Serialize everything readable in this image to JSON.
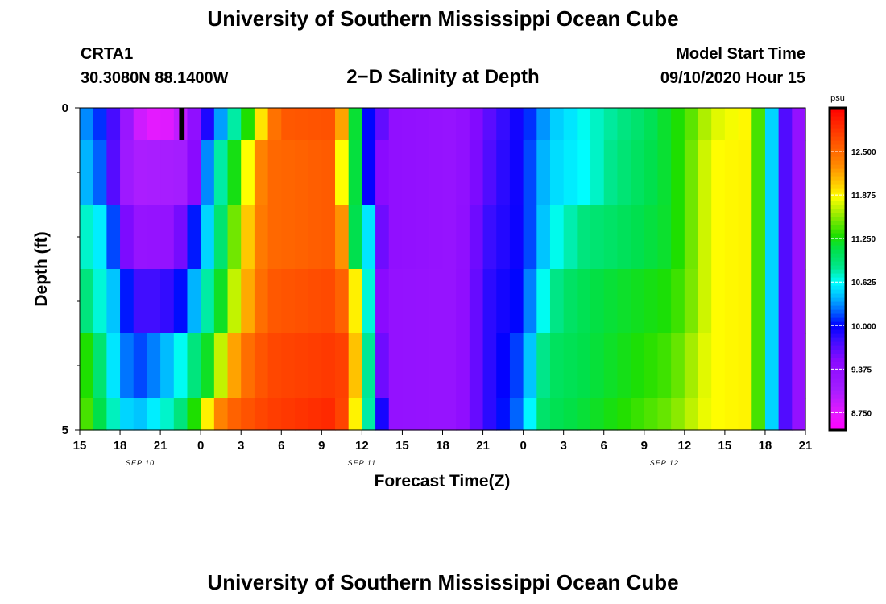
{
  "header": {
    "title": "University of Southern Mississippi Ocean Cube",
    "station_id": "CRTA1",
    "coordinates": "30.3080N 88.1400W",
    "plot_title": "2−D Salinity at Depth",
    "model_start_label": "Model Start Time",
    "model_start_value": "09/10/2020 Hour 15"
  },
  "footer": {
    "title": "University of Southern Mississippi Ocean Cube"
  },
  "chart_data": {
    "type": "heatmap",
    "title": "2−D Salinity at Depth",
    "xlabel": "Forecast Time(Z)",
    "ylabel": "Depth (ft)",
    "x_start_hours": 0,
    "x_end_hours": 54,
    "x_ticks": [
      {
        "h": 0,
        "label": "15"
      },
      {
        "h": 3,
        "label": "18"
      },
      {
        "h": 6,
        "label": "21"
      },
      {
        "h": 9,
        "label": "0"
      },
      {
        "h": 12,
        "label": "3"
      },
      {
        "h": 15,
        "label": "6"
      },
      {
        "h": 18,
        "label": "9"
      },
      {
        "h": 21,
        "label": "12"
      },
      {
        "h": 24,
        "label": "15"
      },
      {
        "h": 27,
        "label": "18"
      },
      {
        "h": 30,
        "label": "21"
      },
      {
        "h": 33,
        "label": "0"
      },
      {
        "h": 36,
        "label": "3"
      },
      {
        "h": 39,
        "label": "6"
      },
      {
        "h": 42,
        "label": "9"
      },
      {
        "h": 45,
        "label": "12"
      },
      {
        "h": 48,
        "label": "15"
      },
      {
        "h": 51,
        "label": "18"
      },
      {
        "h": 54,
        "label": "21"
      }
    ],
    "date_labels": [
      {
        "h": 4.5,
        "label": "SEP 10"
      },
      {
        "h": 21,
        "label": "SEP 11"
      },
      {
        "h": 43.5,
        "label": "SEP 12"
      }
    ],
    "ylim": [
      0,
      5
    ],
    "y_tick_labels": [
      {
        "v": 0,
        "label": "0"
      },
      {
        "v": 5,
        "label": "5"
      }
    ],
    "y_minor_ticks": [
      1,
      2,
      3,
      4
    ],
    "depth_bands": [
      0,
      0.5,
      1.5,
      2.5,
      3.5,
      4.5,
      5
    ],
    "row_profiles": [
      [
        [
          0,
          10.4
        ],
        [
          2,
          10.0
        ],
        [
          3,
          9.5
        ],
        [
          4,
          9.0
        ],
        [
          5,
          8.75
        ],
        [
          7,
          8.8
        ],
        [
          8,
          9.1
        ],
        [
          9,
          9.7
        ],
        [
          10,
          10.1
        ],
        [
          11,
          10.6
        ],
        [
          12,
          11.0
        ],
        [
          13,
          11.6
        ],
        [
          14,
          12.3
        ],
        [
          15,
          12.6
        ],
        [
          19,
          12.65
        ],
        [
          19.5,
          12.2
        ],
        [
          20,
          11.95
        ],
        [
          20.6,
          11.0
        ],
        [
          21.1,
          10.1
        ],
        [
          22,
          9.9
        ],
        [
          23,
          9.4
        ],
        [
          28,
          9.3
        ],
        [
          31,
          9.75
        ],
        [
          33,
          10.0
        ],
        [
          34,
          10.2
        ],
        [
          35,
          10.45
        ],
        [
          36.5,
          10.55
        ],
        [
          38,
          10.7
        ],
        [
          42,
          11.0
        ],
        [
          45,
          11.35
        ],
        [
          47,
          11.75
        ],
        [
          50,
          11.9
        ],
        [
          50.6,
          11.3
        ],
        [
          51.4,
          10.6
        ],
        [
          51.8,
          10.2
        ],
        [
          52.2,
          9.9
        ],
        [
          53,
          9.4
        ],
        [
          54,
          9.3
        ]
      ],
      [
        [
          0,
          10.5
        ],
        [
          2,
          10.1
        ],
        [
          3,
          9.3
        ],
        [
          4,
          9.05
        ],
        [
          8,
          9.1
        ],
        [
          8.5,
          9.5
        ],
        [
          9,
          10.0
        ],
        [
          10,
          10.6
        ],
        [
          11,
          11.0
        ],
        [
          12,
          11.5
        ],
        [
          13,
          12.2
        ],
        [
          14,
          12.5
        ],
        [
          19,
          12.6
        ],
        [
          19.6,
          11.7
        ],
        [
          20.3,
          11.3
        ],
        [
          20.9,
          10.8
        ],
        [
          21.2,
          10.2
        ],
        [
          22,
          9.6
        ],
        [
          23,
          9.4
        ],
        [
          28,
          9.3
        ],
        [
          31,
          9.8
        ],
        [
          33,
          10.0
        ],
        [
          34,
          10.3
        ],
        [
          35,
          10.5
        ],
        [
          37.5,
          10.62
        ],
        [
          40,
          10.9
        ],
        [
          44,
          11.2
        ],
        [
          46,
          11.6
        ],
        [
          47,
          11.85
        ],
        [
          50,
          11.9
        ],
        [
          50.6,
          11.3
        ],
        [
          51.4,
          10.6
        ],
        [
          51.8,
          10.2
        ],
        [
          52.2,
          9.9
        ],
        [
          53,
          9.4
        ],
        [
          54,
          9.3
        ]
      ],
      [
        [
          0,
          10.8
        ],
        [
          2,
          10.5
        ],
        [
          3,
          9.8
        ],
        [
          4,
          9.3
        ],
        [
          7,
          9.35
        ],
        [
          8,
          9.8
        ],
        [
          9,
          10.3
        ],
        [
          10,
          10.7
        ],
        [
          11,
          11.2
        ],
        [
          12,
          11.8
        ],
        [
          13,
          12.3
        ],
        [
          14,
          12.5
        ],
        [
          19,
          12.6
        ],
        [
          19.6,
          12.2
        ],
        [
          20.3,
          11.2
        ],
        [
          21,
          10.8
        ],
        [
          22,
          10.3
        ],
        [
          22.5,
          9.6
        ],
        [
          23,
          9.4
        ],
        [
          28,
          9.3
        ],
        [
          30.5,
          9.8
        ],
        [
          33,
          10.0
        ],
        [
          34,
          10.3
        ],
        [
          35,
          10.6
        ],
        [
          37.5,
          10.9
        ],
        [
          44,
          11.2
        ],
        [
          46,
          11.6
        ],
        [
          47,
          11.85
        ],
        [
          50,
          11.9
        ],
        [
          50.6,
          11.3
        ],
        [
          51.4,
          10.6
        ],
        [
          51.8,
          10.2
        ],
        [
          52.2,
          9.9
        ],
        [
          53,
          9.4
        ],
        [
          54,
          9.3
        ]
      ],
      [
        [
          0,
          11.0
        ],
        [
          2,
          10.6
        ],
        [
          3,
          10.3
        ],
        [
          4,
          9.8
        ],
        [
          5,
          9.75
        ],
        [
          7,
          9.85
        ],
        [
          8,
          10.2
        ],
        [
          9,
          10.6
        ],
        [
          10,
          11.0
        ],
        [
          11,
          11.4
        ],
        [
          12,
          12.0
        ],
        [
          13,
          12.35
        ],
        [
          14,
          12.6
        ],
        [
          19,
          12.7
        ],
        [
          20,
          12.4
        ],
        [
          20.8,
          11.6
        ],
        [
          21.4,
          10.8
        ],
        [
          22,
          10.2
        ],
        [
          22.5,
          9.5
        ],
        [
          23,
          9.35
        ],
        [
          28,
          9.3
        ],
        [
          30.5,
          9.85
        ],
        [
          33,
          10.05
        ],
        [
          34,
          10.5
        ],
        [
          35,
          10.8
        ],
        [
          36.5,
          11.0
        ],
        [
          38,
          11.1
        ],
        [
          44,
          11.3
        ],
        [
          46,
          11.6
        ],
        [
          47,
          11.85
        ],
        [
          50,
          11.9
        ],
        [
          50.6,
          11.3
        ],
        [
          51.4,
          10.6
        ],
        [
          51.8,
          10.2
        ],
        [
          52.2,
          9.9
        ],
        [
          53,
          9.4
        ],
        [
          54,
          9.3
        ]
      ],
      [
        [
          0,
          11.4
        ],
        [
          1,
          11.2
        ],
        [
          2,
          10.7
        ],
        [
          3,
          10.4
        ],
        [
          4,
          10.1
        ],
        [
          5,
          10.2
        ],
        [
          7,
          10.5
        ],
        [
          8,
          10.8
        ],
        [
          9,
          11.0
        ],
        [
          10,
          11.4
        ],
        [
          11,
          12.0
        ],
        [
          12,
          12.4
        ],
        [
          13,
          12.55
        ],
        [
          14,
          12.7
        ],
        [
          19,
          12.8
        ],
        [
          20,
          12.7
        ],
        [
          20.8,
          11.7
        ],
        [
          21.3,
          11.0
        ],
        [
          22,
          10.4
        ],
        [
          22.5,
          9.6
        ],
        [
          23,
          9.35
        ],
        [
          28,
          9.3
        ],
        [
          30.5,
          9.85
        ],
        [
          33,
          10.2
        ],
        [
          34,
          10.7
        ],
        [
          35,
          11.0
        ],
        [
          37.5,
          11.1
        ],
        [
          44,
          11.4
        ],
        [
          46,
          11.7
        ],
        [
          47,
          11.85
        ],
        [
          50,
          11.9
        ],
        [
          50.6,
          11.3
        ],
        [
          51.4,
          10.6
        ],
        [
          51.8,
          10.2
        ],
        [
          52.2,
          9.9
        ],
        [
          53,
          9.4
        ],
        [
          54,
          9.3
        ]
      ],
      [
        [
          0,
          11.5
        ],
        [
          1,
          11.3
        ],
        [
          2,
          10.9
        ],
        [
          3,
          10.6
        ],
        [
          4,
          10.4
        ],
        [
          5,
          10.5
        ],
        [
          7,
          10.8
        ],
        [
          8,
          11.0
        ],
        [
          9,
          11.6
        ],
        [
          10,
          12.2
        ],
        [
          11,
          12.5
        ],
        [
          12,
          12.6
        ],
        [
          14,
          12.75
        ],
        [
          19,
          12.9
        ],
        [
          20,
          12.55
        ],
        [
          20.8,
          11.5
        ],
        [
          21.6,
          10.7
        ],
        [
          22.3,
          10.2
        ],
        [
          22.8,
          9.5
        ],
        [
          23.2,
          9.35
        ],
        [
          28,
          9.3
        ],
        [
          30.5,
          9.85
        ],
        [
          33,
          10.3
        ],
        [
          34,
          10.9
        ],
        [
          35,
          11.05
        ],
        [
          37.5,
          11.15
        ],
        [
          44,
          11.5
        ],
        [
          46,
          11.75
        ],
        [
          47,
          11.85
        ],
        [
          50,
          11.9
        ],
        [
          50.6,
          11.3
        ],
        [
          51.4,
          10.6
        ],
        [
          51.8,
          10.2
        ],
        [
          52.2,
          9.9
        ],
        [
          53,
          9.4
        ],
        [
          54,
          9.3
        ]
      ]
    ],
    "missing_cell": {
      "h_start": 7.4,
      "h_end": 7.8,
      "band": 0
    },
    "colorbar": {
      "unit": "psu",
      "min": 8.5,
      "max": 13.125,
      "tick_labels": [
        "8.750",
        "9.375",
        "10.000",
        "10.625",
        "11.250",
        "11.875",
        "12.500"
      ],
      "tick_values": [
        8.75,
        9.375,
        10.0,
        10.625,
        11.25,
        11.875,
        12.5
      ]
    },
    "colormap": [
      [
        8.5,
        "#ff00ff"
      ],
      [
        8.75,
        "#e61aff"
      ],
      [
        9.1,
        "#a31dff"
      ],
      [
        9.5,
        "#8a0aff"
      ],
      [
        9.8,
        "#3a0dff"
      ],
      [
        10.0,
        "#0000ff"
      ],
      [
        10.2,
        "#0060ff"
      ],
      [
        10.4,
        "#00b4ff"
      ],
      [
        10.625,
        "#00ffff"
      ],
      [
        10.85,
        "#00e68a"
      ],
      [
        11.1,
        "#00e04a"
      ],
      [
        11.3,
        "#1edf00"
      ],
      [
        11.6,
        "#9aeb00"
      ],
      [
        11.85,
        "#ffff00"
      ],
      [
        12.05,
        "#ffc800"
      ],
      [
        12.3,
        "#ff8a00"
      ],
      [
        12.5,
        "#ff6a00"
      ],
      [
        12.75,
        "#ff4000"
      ],
      [
        13.125,
        "#ff0000"
      ]
    ]
  }
}
